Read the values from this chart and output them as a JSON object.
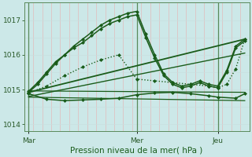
{
  "title": "",
  "xlabel": "Pression niveau de la mer( hPa )",
  "ylabel": "",
  "bg_color": "#cce8e8",
  "plot_bg_color": "#cce8e8",
  "grid_color_v": "#e8b0b0",
  "grid_color_h": "#c8dede",
  "line_color": "#1a5c1a",
  "ylim": [
    1013.8,
    1017.5
  ],
  "xlim": [
    0,
    50
  ],
  "xticks": [
    1,
    25,
    43
  ],
  "xtick_labels": [
    "Mar",
    "Mer",
    "Jeu"
  ],
  "yticks": [
    1014,
    1015,
    1016,
    1017
  ],
  "vlines": [
    1,
    25,
    43
  ],
  "series": [
    {
      "x": [
        1,
        3,
        5,
        7,
        9,
        11,
        13,
        15,
        17,
        19,
        21,
        23,
        25,
        27,
        29,
        31,
        33,
        35,
        37,
        39,
        41,
        43,
        45,
        47,
        49
      ],
      "y": [
        1014.95,
        1015.2,
        1015.5,
        1015.8,
        1016.0,
        1016.2,
        1016.35,
        1016.55,
        1016.75,
        1016.9,
        1017.0,
        1017.1,
        1017.15,
        1016.5,
        1015.9,
        1015.4,
        1015.15,
        1015.05,
        1015.1,
        1015.2,
        1015.1,
        1015.05,
        1015.5,
        1016.2,
        1016.4
      ],
      "style": "-",
      "marker": "D",
      "ms": 2.0,
      "lw": 1.1
    },
    {
      "x": [
        1,
        3,
        5,
        7,
        9,
        11,
        13,
        15,
        17,
        19,
        21,
        23,
        25,
        27,
        29,
        31,
        33,
        35,
        37,
        39,
        41,
        43,
        45,
        47,
        49
      ],
      "y": [
        1014.92,
        1015.15,
        1015.45,
        1015.75,
        1016.0,
        1016.25,
        1016.45,
        1016.65,
        1016.85,
        1017.0,
        1017.1,
        1017.2,
        1017.25,
        1016.6,
        1016.0,
        1015.45,
        1015.2,
        1015.1,
        1015.15,
        1015.25,
        1015.15,
        1015.1,
        1015.55,
        1016.25,
        1016.45
      ],
      "style": "-",
      "marker": "D",
      "ms": 2.0,
      "lw": 1.1
    },
    {
      "x": [
        1,
        5,
        9,
        13,
        17,
        21,
        25,
        29,
        33,
        37,
        41,
        43,
        45,
        47,
        49
      ],
      "y": [
        1014.9,
        1015.1,
        1015.4,
        1015.65,
        1015.85,
        1016.0,
        1015.3,
        1015.25,
        1015.2,
        1015.15,
        1015.1,
        1015.05,
        1015.15,
        1015.6,
        1016.45
      ],
      "style": ":",
      "marker": "D",
      "ms": 2.0,
      "lw": 1.0
    },
    {
      "x": [
        1,
        5,
        9,
        13,
        17,
        21,
        25,
        29,
        33,
        37,
        41,
        43,
        47,
        49
      ],
      "y": [
        1014.88,
        1014.72,
        1014.68,
        1014.7,
        1014.72,
        1014.75,
        1014.85,
        1014.9,
        1014.92,
        1014.88,
        1014.82,
        1014.78,
        1014.75,
        1014.88
      ],
      "style": "-",
      "marker": "D",
      "ms": 2.0,
      "lw": 1.1
    },
    {
      "x": [
        1,
        49
      ],
      "y": [
        1014.78,
        1014.68
      ],
      "style": "-",
      "marker": null,
      "ms": 0,
      "lw": 0.9
    },
    {
      "x": [
        1,
        49
      ],
      "y": [
        1014.96,
        1014.92
      ],
      "style": "-",
      "marker": null,
      "ms": 0,
      "lw": 0.9
    },
    {
      "x": [
        1,
        49
      ],
      "y": [
        1014.92,
        1016.45
      ],
      "style": "-",
      "marker": null,
      "ms": 0,
      "lw": 1.3
    },
    {
      "x": [
        1,
        49
      ],
      "y": [
        1014.8,
        1016.05
      ],
      "style": "-",
      "marker": null,
      "ms": 0,
      "lw": 1.0
    }
  ]
}
